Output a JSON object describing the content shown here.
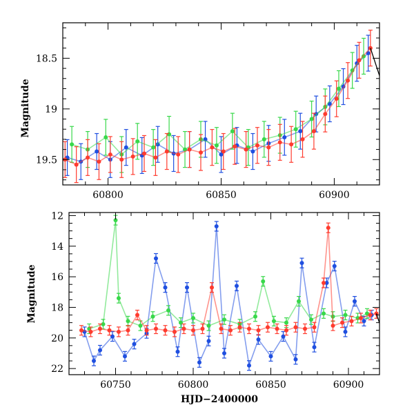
{
  "figure": {
    "colors": {
      "blue": "#1f4fe0",
      "green": "#38d84a",
      "red": "#ff3b2e",
      "axis": "#000000"
    }
  },
  "chart_data": [
    {
      "type": "scatter",
      "panel": "top",
      "title": "",
      "xlabel": "",
      "ylabel": "Magnitude",
      "xlim": [
        60780,
        60920
      ],
      "ylim": [
        19.75,
        18.15
      ],
      "y_inverted": true,
      "error_bars": true,
      "xticks": [
        60800,
        60850,
        60900
      ],
      "xtick_labels": [
        "60800",
        "60850",
        "60900"
      ],
      "yticks": [
        18.5,
        19,
        19.5
      ],
      "ytick_labels": [
        "18.5",
        "19",
        "19.5"
      ],
      "series": [
        {
          "color": "#1f4fe0",
          "x": [
            60782,
            60788,
            60795,
            60801,
            60808,
            60815,
            60822,
            60829,
            60836,
            60843,
            60850,
            60857,
            60864,
            60871,
            60878,
            60885,
            60892,
            60898,
            60904,
            60910,
            60915
          ],
          "y": [
            19.48,
            19.52,
            19.42,
            19.5,
            19.38,
            19.46,
            19.35,
            19.44,
            19.4,
            19.3,
            19.45,
            19.36,
            19.42,
            19.34,
            19.28,
            19.22,
            19.05,
            18.95,
            18.78,
            18.55,
            18.45
          ]
        },
        {
          "color": "#38d84a",
          "x": [
            60784,
            60791,
            60799,
            60806,
            60813,
            60820,
            60827,
            60834,
            60841,
            60848,
            60855,
            60862,
            60869,
            60876,
            60883,
            60890,
            60896,
            60902,
            60908,
            60913
          ],
          "y": [
            19.35,
            19.4,
            19.28,
            19.45,
            19.32,
            19.38,
            19.25,
            19.4,
            19.3,
            19.36,
            19.22,
            19.38,
            19.3,
            19.26,
            19.2,
            19.1,
            18.98,
            18.8,
            18.62,
            18.48
          ]
        },
        {
          "color": "#ff3b2e",
          "x": [
            60781,
            60786,
            60791,
            60796,
            60801,
            60806,
            60811,
            60816,
            60821,
            60826,
            60831,
            60836,
            60841,
            60846,
            60851,
            60856,
            60861,
            60866,
            60871,
            60876,
            60881,
            60886,
            60891,
            60896,
            60901,
            60906,
            60911,
            60916
          ],
          "y": [
            19.5,
            19.55,
            19.48,
            19.52,
            19.45,
            19.5,
            19.47,
            19.44,
            19.48,
            19.42,
            19.45,
            19.4,
            19.43,
            19.38,
            19.42,
            19.37,
            19.4,
            19.36,
            19.38,
            19.33,
            19.35,
            19.3,
            19.22,
            19.05,
            18.9,
            18.72,
            18.52,
            18.4
          ]
        }
      ]
    },
    {
      "type": "scatter",
      "panel": "bottom",
      "title": "",
      "xlabel": "HJD−2400000",
      "ylabel": "Magnitude",
      "xlim": [
        60720,
        60920
      ],
      "ylim": [
        22.4,
        11.8
      ],
      "y_inverted": true,
      "error_bars": true,
      "xticks": [
        60750,
        60800,
        60850,
        60900
      ],
      "xtick_labels": [
        "60750",
        "60800",
        "60850",
        "60900"
      ],
      "yticks": [
        12,
        14,
        16,
        18,
        20,
        22
      ],
      "ytick_labels": [
        "12",
        "14",
        "16",
        "18",
        "20",
        "22"
      ],
      "series": [
        {
          "color": "#1f4fe0",
          "x": [
            60730,
            60736,
            60740,
            60748,
            60756,
            60762,
            60770,
            60776,
            60782,
            60790,
            60796,
            60804,
            60810,
            60815,
            60820,
            60828,
            60836,
            60842,
            60850,
            60858,
            60866,
            60870,
            60878,
            60886,
            60891,
            60898,
            60904,
            60910,
            60915
          ],
          "y": [
            19.6,
            21.5,
            20.8,
            19.9,
            21.2,
            20.4,
            19.7,
            14.8,
            16.7,
            20.9,
            16.7,
            21.6,
            20.2,
            12.7,
            21.0,
            16.6,
            21.8,
            20.1,
            21.2,
            19.9,
            21.4,
            15.1,
            20.6,
            16.4,
            15.3,
            19.6,
            17.6,
            18.9,
            18.5
          ]
        },
        {
          "color": "#38d84a",
          "x": [
            60733,
            60742,
            60750,
            60752,
            60758,
            60766,
            60774,
            60784,
            60792,
            60800,
            60810,
            60820,
            60830,
            60840,
            60845,
            60852,
            60860,
            60868,
            60876,
            60884,
            60890,
            60898,
            60906,
            60912
          ],
          "y": [
            19.4,
            19.1,
            12.3,
            17.4,
            18.9,
            19.2,
            18.6,
            18.2,
            19.0,
            18.7,
            19.2,
            18.8,
            19.1,
            18.6,
            16.3,
            18.9,
            19.0,
            17.6,
            18.8,
            18.4,
            18.6,
            18.5,
            18.7,
            18.4
          ]
        },
        {
          "color": "#ff3b2e",
          "x": [
            60728,
            60734,
            60740,
            60746,
            60752,
            60758,
            60764,
            60770,
            60776,
            60782,
            60788,
            60794,
            60800,
            60806,
            60812,
            60818,
            60824,
            60830,
            60836,
            60842,
            60848,
            60854,
            60860,
            60866,
            60872,
            60878,
            60884,
            60887,
            60890,
            60896,
            60902,
            60908,
            60914,
            60918
          ],
          "y": [
            19.5,
            19.6,
            19.4,
            19.5,
            19.6,
            19.5,
            18.5,
            19.5,
            19.4,
            19.5,
            19.6,
            19.4,
            19.5,
            19.4,
            16.7,
            19.4,
            19.5,
            19.3,
            19.4,
            19.5,
            19.3,
            19.4,
            19.5,
            19.3,
            19.4,
            19.3,
            16.4,
            12.8,
            19.2,
            19.0,
            18.9,
            18.7,
            18.5,
            18.4
          ]
        }
      ]
    }
  ]
}
